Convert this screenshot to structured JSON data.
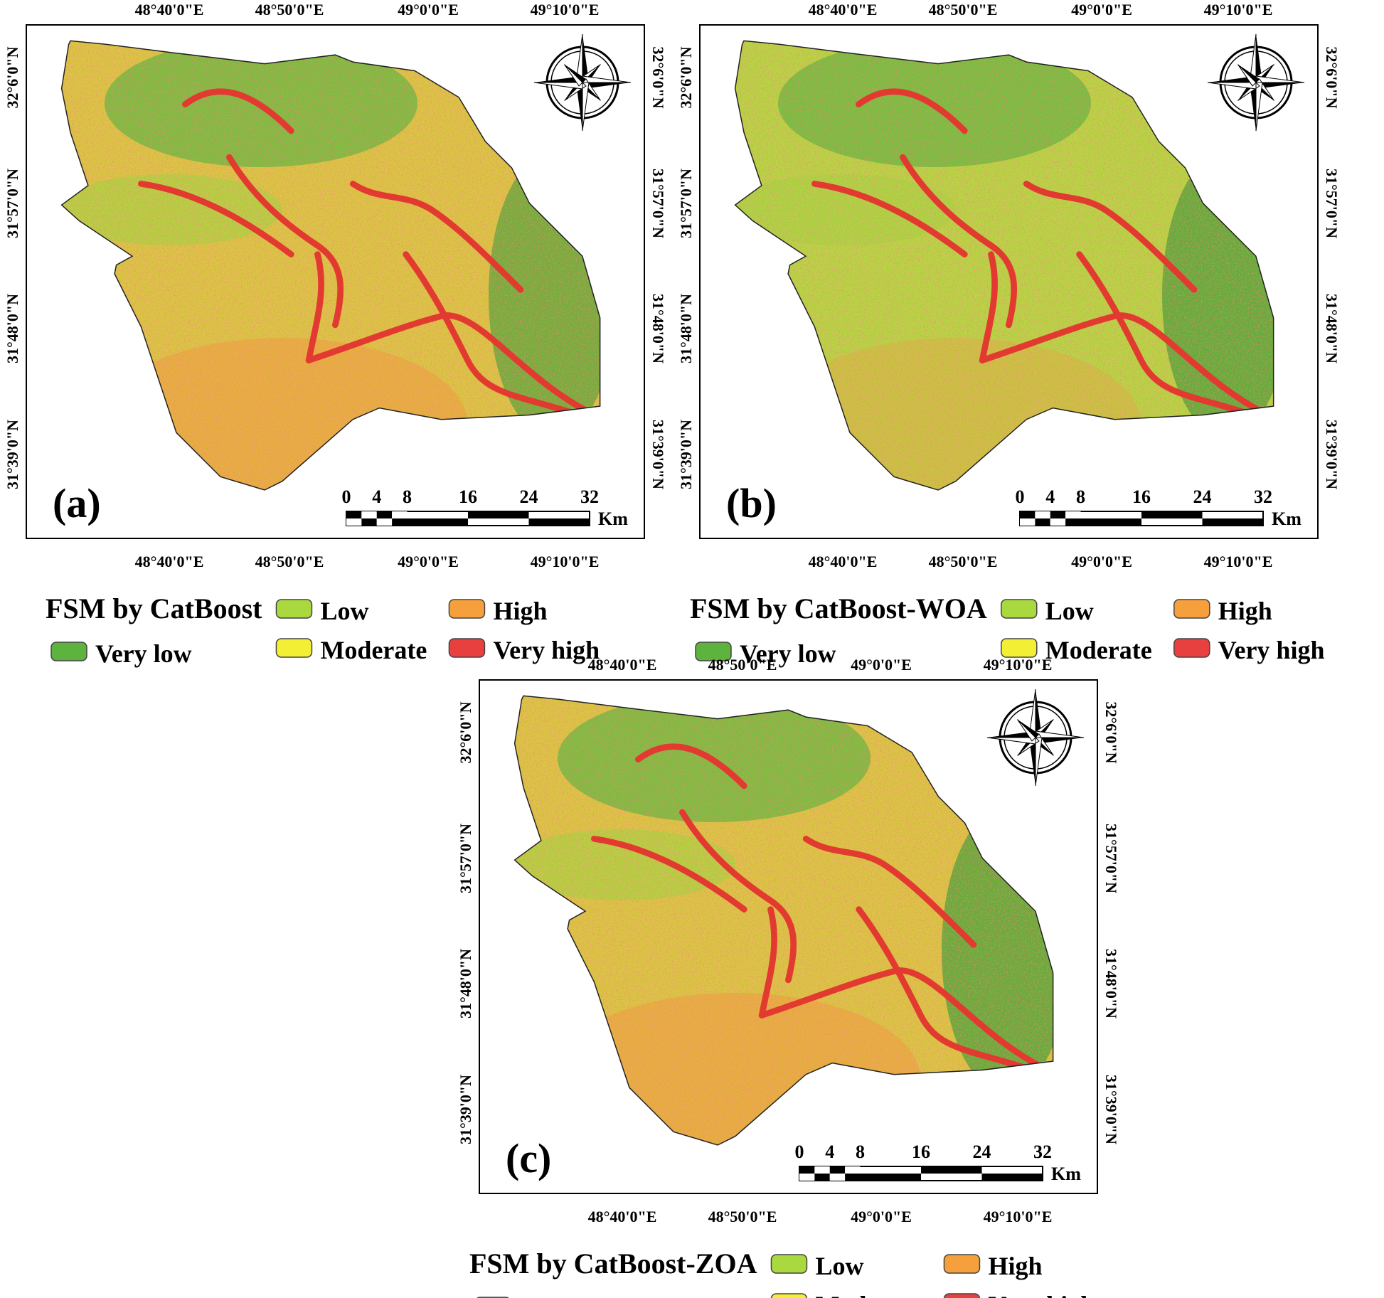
{
  "panels": [
    {
      "label": "(a)",
      "legend_title": "FSM by CatBoost"
    },
    {
      "label": "(b)",
      "legend_title": "FSM by CatBoost-WOA"
    },
    {
      "label": "(c)",
      "legend_title": "FSM by CatBoost-ZOA"
    }
  ],
  "longitude_labels": [
    "48°40'0\"E",
    "48°50'0\"E",
    "49°0'0\"E",
    "49°10'0\"E"
  ],
  "latitude_labels": [
    "32°6'0\"N",
    "31°57'0\"N",
    "31°48'0\"N",
    "31°39'0\"N"
  ],
  "scale_bar": {
    "ticks": [
      0,
      4,
      8,
      16,
      24,
      32
    ],
    "unit": "Km"
  },
  "legend_classes": [
    {
      "name": "Very low",
      "color": "#5db33d"
    },
    {
      "name": "Low",
      "color": "#a9d93f"
    },
    {
      "name": "Moderate",
      "color": "#f2ef35"
    },
    {
      "name": "High",
      "color": "#f5a03c"
    },
    {
      "name": "Very high",
      "color": "#e8403f"
    }
  ]
}
